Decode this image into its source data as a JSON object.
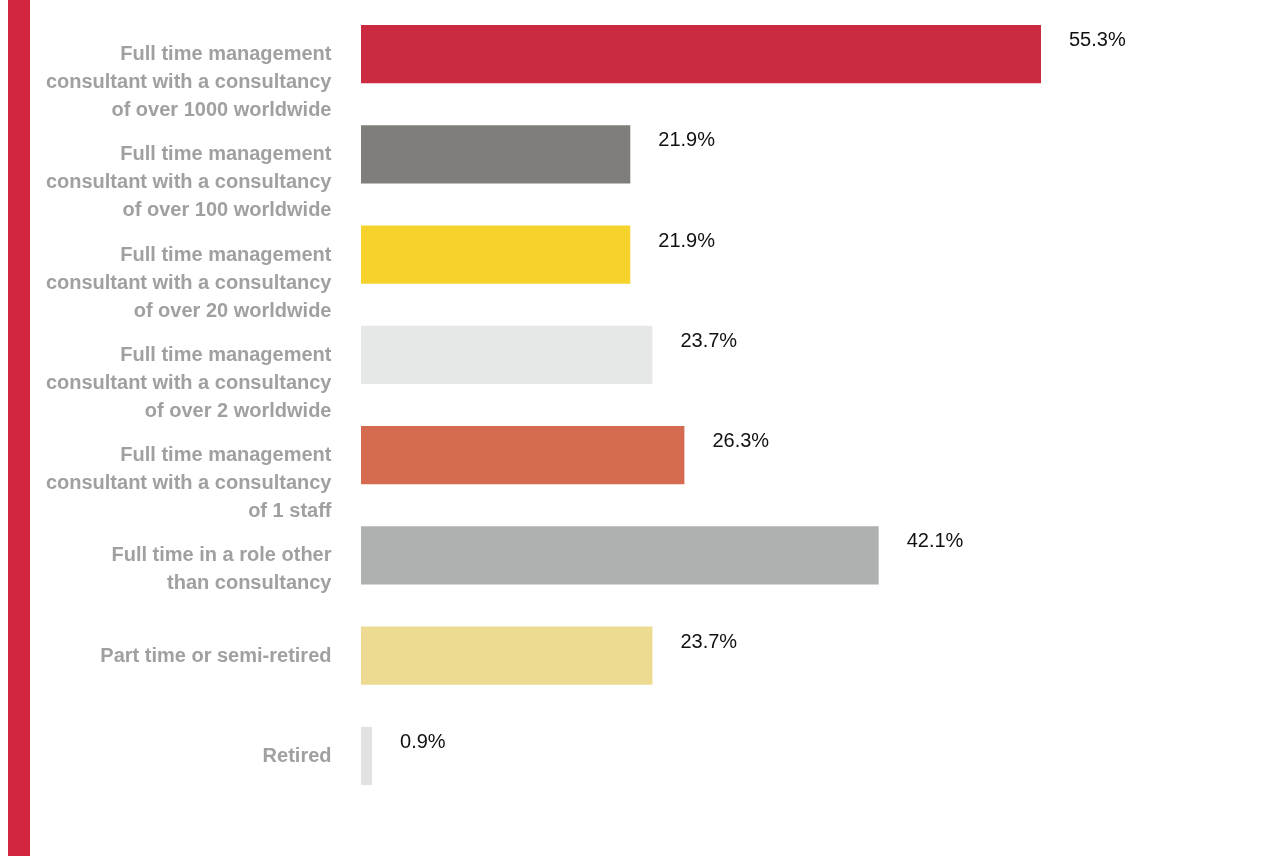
{
  "chart_data": {
    "type": "bar",
    "orientation": "horizontal",
    "categories": [
      "Full time management consultant with a consultancy of over 1000 worldwide",
      "Full time management consultant with a consultancy of over 100 worldwide",
      "Full time management consultant with a consultancy of over 20 worldwide",
      "Full time management consultant with a consultancy of over 2 worldwide",
      "Full time management consultant with a consultancy of 1 staff",
      "Full time in a role other than consultancy",
      "Part time or semi-retired",
      "Retired"
    ],
    "values": [
      55.3,
      21.9,
      21.9,
      23.7,
      26.3,
      42.1,
      23.7,
      0.9
    ],
    "value_labels": [
      "55.3%",
      "21.9%",
      "21.9%",
      "23.7%",
      "26.3%",
      "42.1%",
      "23.7%",
      "0.9%"
    ],
    "colors": [
      "#cc2a40",
      "#7f7e7a",
      "#f5d22c",
      "#e6e7e7",
      "#d46a50",
      "#aeb1b0",
      "#ecdb90",
      "#e2e2e2"
    ],
    "legend": false
  }
}
